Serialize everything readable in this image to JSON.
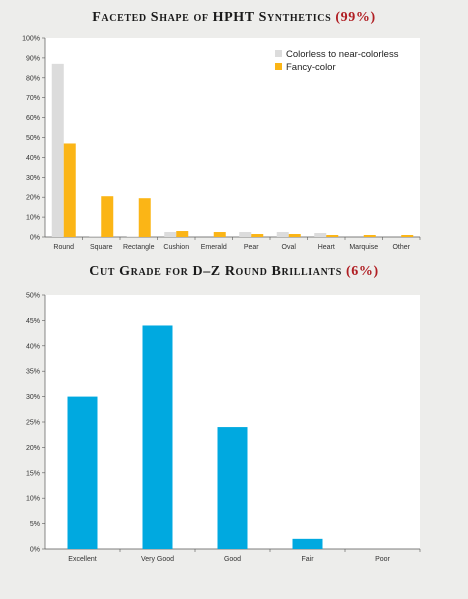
{
  "chart_data": [
    {
      "type": "bar",
      "title": "Faceted Shape of HPHT Synthetics",
      "title_highlight": "(99%)",
      "categories": [
        "Round",
        "Square",
        "Rectangle",
        "Cushion",
        "Emerald",
        "Pear",
        "Oval",
        "Heart",
        "Marquise",
        "Other"
      ],
      "series": [
        {
          "name": "Colorless to near-colorless",
          "color": "#dcdcdc",
          "values": [
            87,
            0.5,
            0.3,
            2.5,
            0,
            2.5,
            2.5,
            2,
            0,
            0
          ]
        },
        {
          "name": "Fancy-color",
          "color": "#fbb516",
          "values": [
            47,
            20.5,
            19.5,
            3,
            2.5,
            1.5,
            1.5,
            1,
            1,
            1
          ]
        }
      ],
      "ylim": [
        0,
        100
      ],
      "yticks": [
        "0%",
        "10%",
        "20%",
        "30%",
        "40%",
        "50%",
        "60%",
        "70%",
        "80%",
        "90%",
        "100%"
      ],
      "legend": "top-right",
      "grid": false
    },
    {
      "type": "bar",
      "title": "Cut Grade for D–Z Round Brilliants",
      "title_highlight": "(6%)",
      "categories": [
        "Excellent",
        "Very Good",
        "Good",
        "Fair",
        "Poor"
      ],
      "series": [
        {
          "color": "#00a9e0",
          "values": [
            30,
            44,
            24,
            2,
            0
          ]
        }
      ],
      "ylim": [
        0,
        50
      ],
      "yticks": [
        "0%",
        "5%",
        "10%",
        "15%",
        "20%",
        "25%",
        "30%",
        "35%",
        "40%",
        "45%",
        "50%"
      ],
      "grid": false
    }
  ]
}
